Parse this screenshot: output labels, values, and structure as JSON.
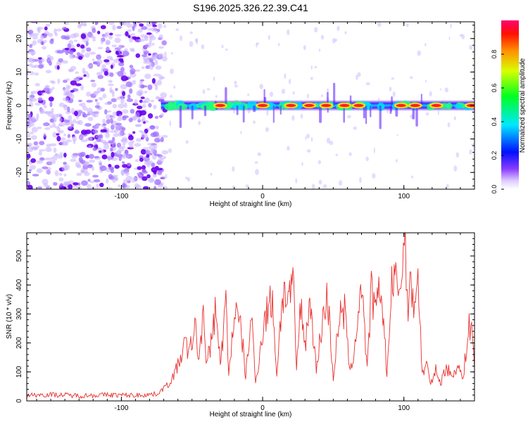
{
  "title": "S196.2025.326.22.39.C41",
  "chart_data": [
    {
      "type": "heatmap",
      "xlabel": "Height of straight line (km)",
      "ylabel": "Frequency (Hz)",
      "xlim": [
        -167,
        150
      ],
      "ylim": [
        -25,
        25
      ],
      "xticks": [
        -100,
        0,
        100
      ],
      "yticks": [
        -20,
        -10,
        0,
        10,
        20
      ],
      "noise_region_x": [
        -167,
        -72
      ],
      "line_region_x": [
        -72,
        150
      ],
      "line_frequency_hz": 0,
      "bright_segments_x": [
        -30,
        0,
        20,
        33,
        45,
        58,
        68,
        98,
        108,
        123,
        148
      ],
      "colorbar": {
        "label": "Normalized spectral amplitude",
        "range": [
          0,
          1
        ],
        "ticks": [
          0.0,
          0.2,
          0.4,
          0.6,
          0.8
        ],
        "tick_labels": [
          "0.0",
          "0.2",
          "0.4",
          "0.6",
          "0.8"
        ],
        "colors": [
          "#ffffff",
          "#c9b2ff",
          "#6a00ff",
          "#0000ff",
          "#00ffff",
          "#00ff00",
          "#ffff00",
          "#ff8000",
          "#ff0000",
          "#ff0066"
        ]
      }
    },
    {
      "type": "line",
      "xlabel": "Height of straight line (km)",
      "ylabel": "SNR (10 * v/v)",
      "xlim": [
        -167,
        150
      ],
      "ylim": [
        0,
        580
      ],
      "xticks": [
        -100,
        0,
        100
      ],
      "yticks": [
        0,
        100,
        200,
        300,
        400,
        500
      ],
      "color": "#e8302e",
      "series": [
        {
          "name": "SNR",
          "x": [
            -167,
            -150,
            -130,
            -110,
            -90,
            -75,
            -66,
            -60,
            -55,
            -52,
            -48,
            -45,
            -42,
            -40,
            -36,
            -33,
            -30,
            -26,
            -24,
            -20,
            -15,
            -12,
            -8,
            -5,
            0,
            3,
            7,
            10,
            14,
            18,
            22,
            24,
            27,
            30,
            34,
            38,
            42,
            46,
            50,
            54,
            58,
            62,
            66,
            70,
            74,
            77,
            80,
            84,
            88,
            92,
            96,
            99,
            101,
            103,
            105,
            107,
            110,
            113,
            116,
            119,
            122,
            126,
            130,
            134,
            138,
            142,
            145,
            148,
            150
          ],
          "y": [
            20,
            22,
            18,
            21,
            19,
            24,
            60,
            120,
            200,
            160,
            260,
            140,
            320,
            110,
            220,
            330,
            120,
            340,
            90,
            310,
            240,
            80,
            300,
            60,
            240,
            310,
            350,
            90,
            370,
            360,
            380,
            110,
            330,
            200,
            350,
            100,
            270,
            360,
            80,
            280,
            310,
            90,
            220,
            420,
            100,
            380,
            300,
            400,
            90,
            430,
            380,
            460,
            580,
            300,
            400,
            350,
            420,
            90,
            130,
            50,
            110,
            60,
            120,
            80,
            130,
            70,
            230,
            280,
            110
          ]
        }
      ]
    }
  ]
}
